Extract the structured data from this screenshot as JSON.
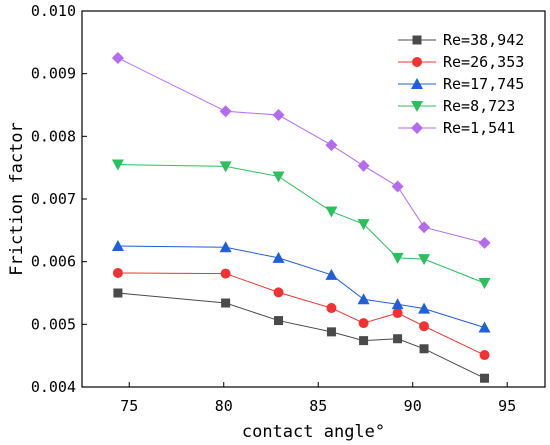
{
  "chart_data": {
    "type": "line",
    "title": "",
    "xlabel": "contact angle°",
    "ylabel": "Friction factor",
    "xlim": [
      72.5,
      97
    ],
    "ylim": [
      0.004,
      0.01
    ],
    "x_ticks": [
      75,
      80,
      85,
      90,
      95
    ],
    "x_tick_labels": [
      "75",
      "80",
      "85",
      "90",
      "95"
    ],
    "y_ticks": [
      0.004,
      0.005,
      0.006,
      0.007,
      0.008,
      0.009,
      0.01
    ],
    "y_tick_labels": [
      "0.004",
      "0.005",
      "0.006",
      "0.007",
      "0.008",
      "0.009",
      "0.010"
    ],
    "grid": false,
    "legend_position": "top-right",
    "x": [
      74.4,
      80.1,
      82.9,
      85.7,
      87.4,
      89.2,
      90.6,
      93.8
    ],
    "series": [
      {
        "name": "Re=38,942",
        "marker": "square",
        "color": "#4a4a4a",
        "values": [
          0.0055,
          0.00534,
          0.00506,
          0.00488,
          0.00474,
          0.00477,
          0.00461,
          0.00414
        ]
      },
      {
        "name": "Re=26,353",
        "marker": "circle",
        "color": "#f03232",
        "values": [
          0.00582,
          0.00581,
          0.00551,
          0.00526,
          0.00502,
          0.00518,
          0.00497,
          0.00451
        ]
      },
      {
        "name": "Re=17,745",
        "marker": "triangle-up",
        "color": "#1f5fd9",
        "values": [
          0.00625,
          0.00623,
          0.00606,
          0.00579,
          0.0054,
          0.00532,
          0.00525,
          0.00495
        ]
      },
      {
        "name": "Re=8,723",
        "marker": "triangle-down",
        "color": "#2bbf5e",
        "values": [
          0.00755,
          0.00752,
          0.00736,
          0.0068,
          0.0066,
          0.00606,
          0.00604,
          0.00566
        ]
      },
      {
        "name": "Re=1,541",
        "marker": "diamond",
        "color": "#b36cf0",
        "values": [
          0.00925,
          0.0084,
          0.00834,
          0.00786,
          0.00753,
          0.0072,
          0.00655,
          0.0063
        ]
      }
    ]
  }
}
